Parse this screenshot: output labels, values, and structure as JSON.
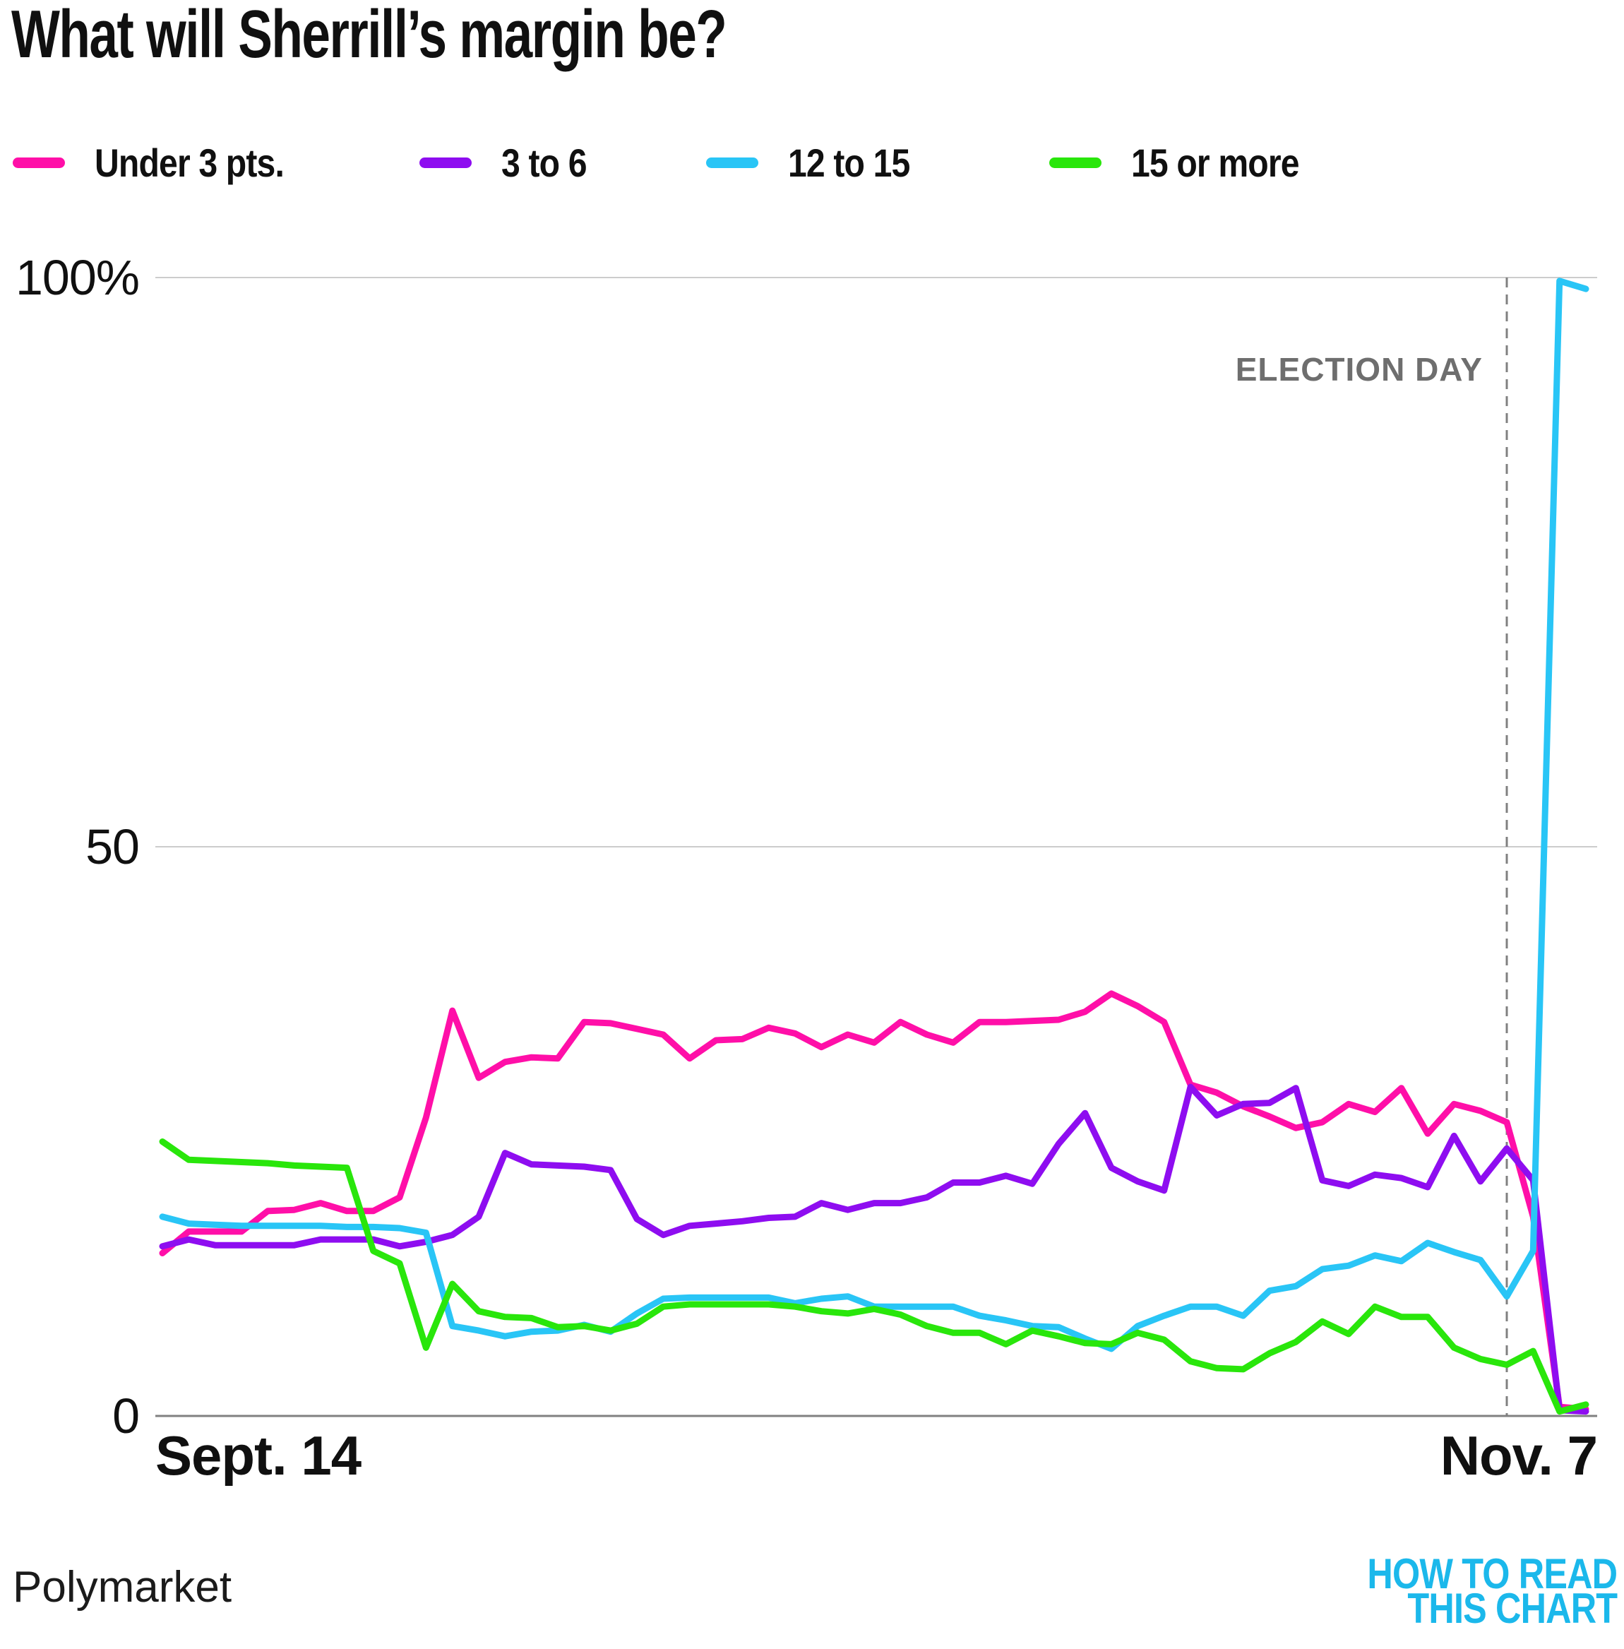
{
  "title": "What will Sherrill’s margin be?",
  "source": "Polymarket",
  "logo": {
    "line1": "HOW TO READ",
    "line2": "THIS CHART",
    "color": "#1bb8eb"
  },
  "chart_data": {
    "type": "line",
    "title": "What will Sherrill’s margin be?",
    "xlabel": "",
    "ylabel": "",
    "ylim": [
      0,
      100
    ],
    "grid": true,
    "legend_position": "top",
    "x_unit": "days from Sept. 14 to Nov. 7",
    "x_ticks": [
      {
        "pos": "start",
        "label": "Sept. 14"
      },
      {
        "pos": "end",
        "label": "Nov. 7"
      }
    ],
    "y_ticks": [
      {
        "value": 100,
        "label": "100%"
      },
      {
        "value": 50,
        "label": "50"
      },
      {
        "value": 0,
        "label": "0"
      }
    ],
    "annotation": {
      "label": "ELECTION DAY",
      "day_index": 51,
      "color": "#6e6e6e"
    },
    "series": [
      {
        "name": "Under 3 pts.",
        "color": "#ff0fa8",
        "values": [
          14.3,
          16.2,
          16.2,
          16.2,
          18,
          18.1,
          18.7,
          18,
          18,
          19.2,
          26.2,
          35.6,
          29.7,
          31.1,
          31.5,
          31.4,
          34.6,
          34.5,
          34,
          33.5,
          31.4,
          33,
          33.1,
          34.1,
          33.6,
          32.4,
          33.5,
          32.8,
          34.6,
          33.5,
          32.8,
          34.6,
          34.6,
          34.7,
          34.8,
          35.5,
          37.1,
          36,
          34.6,
          29.1,
          28.4,
          27.2,
          26.3,
          25.3,
          25.8,
          27.4,
          26.7,
          28.8,
          24.8,
          27.4,
          26.8,
          25.8,
          17.5,
          0.8,
          0.6
        ]
      },
      {
        "name": "3 to 6",
        "color": "#8e0df0",
        "values": [
          14.9,
          15.5,
          15,
          15,
          15,
          15,
          15.5,
          15.5,
          15.5,
          14.9,
          15.3,
          15.9,
          17.5,
          23.1,
          22.1,
          22,
          21.9,
          21.6,
          17.3,
          15.9,
          16.7,
          16.9,
          17.1,
          17.4,
          17.5,
          18.7,
          18.1,
          18.7,
          18.7,
          19.2,
          20.5,
          20.5,
          21.1,
          20.4,
          23.9,
          26.6,
          21.8,
          20.6,
          19.8,
          28.9,
          26.4,
          27.4,
          27.5,
          28.8,
          20.7,
          20.2,
          21.2,
          20.9,
          20.1,
          24.6,
          20.6,
          23.5,
          20.7,
          0.5,
          0.4
        ]
      },
      {
        "name": "12 to 15",
        "color": "#29c5f6",
        "values": [
          17.5,
          16.9,
          16.8,
          16.7,
          16.7,
          16.7,
          16.7,
          16.6,
          16.6,
          16.5,
          16.1,
          7.9,
          7.5,
          7,
          7.4,
          7.5,
          8,
          7.4,
          9,
          10.3,
          10.4,
          10.4,
          10.4,
          10.4,
          9.9,
          10.3,
          10.5,
          9.6,
          9.6,
          9.6,
          9.6,
          8.8,
          8.4,
          7.9,
          7.8,
          6.8,
          5.9,
          7.9,
          8.8,
          9.6,
          9.6,
          8.8,
          11,
          11.4,
          12.9,
          13.2,
          14.1,
          13.6,
          15.2,
          14.4,
          13.7,
          10.5,
          14.5,
          99.7,
          99
        ]
      },
      {
        "name": "15 or more",
        "color": "#29e60b",
        "values": [
          24.1,
          22.5,
          22.4,
          22.3,
          22.2,
          22,
          21.9,
          21.8,
          14.5,
          13.4,
          6,
          11.6,
          9.2,
          8.7,
          8.6,
          7.8,
          7.9,
          7.5,
          8.1,
          9.6,
          9.8,
          9.8,
          9.8,
          9.8,
          9.6,
          9.2,
          9,
          9.4,
          8.9,
          7.9,
          7.3,
          7.3,
          6.3,
          7.5,
          7,
          6.4,
          6.3,
          7.3,
          6.7,
          4.8,
          4.2,
          4.1,
          5.5,
          6.5,
          8.3,
          7.2,
          9.6,
          8.7,
          8.7,
          6,
          5,
          4.5,
          5.7,
          0.4,
          1
        ]
      }
    ]
  }
}
